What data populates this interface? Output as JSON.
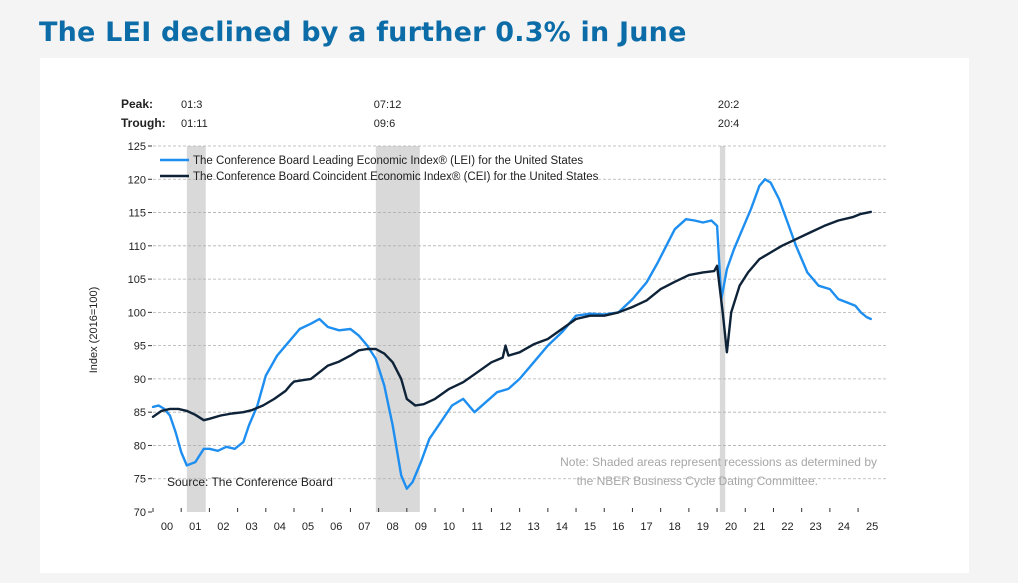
{
  "page": {
    "title": "The LEI declined by a further 0.3% in June"
  },
  "chart_data": {
    "type": "line",
    "ylabel": "Index (2016=100)",
    "ylim": [
      70,
      125
    ],
    "yticks": [
      70,
      75,
      80,
      85,
      90,
      95,
      100,
      105,
      110,
      115,
      120,
      125
    ],
    "xlim": [
      2000.0,
      2025.6
    ],
    "xticks": [
      "00",
      "01",
      "02",
      "03",
      "04",
      "05",
      "06",
      "07",
      "08",
      "09",
      "10",
      "11",
      "12",
      "13",
      "14",
      "15",
      "16",
      "17",
      "18",
      "19",
      "20",
      "21",
      "22",
      "23",
      "24",
      "25"
    ],
    "peak_label": "Peak:",
    "trough_label": "Trough:",
    "recessions": [
      {
        "start": 2001.2,
        "end": 2001.87,
        "peak_text": "01:3",
        "trough_text": "01:11"
      },
      {
        "start": 2007.9,
        "end": 2009.46,
        "peak_text": "07:12",
        "trough_text": "09:6"
      },
      {
        "start": 2020.1,
        "end": 2020.29,
        "peak_text": "20:2",
        "trough_text": "20:4"
      }
    ],
    "source": "Source: The Conference Board",
    "note_line1": "Note: Shaded areas represent recessions as determined by",
    "note_line2": "the NBER Business Cycle Dating Committee.",
    "series": [
      {
        "name": "The Conference Board Leading Economic Index® (LEI) for the United States",
        "color": "#1e8ff0",
        "x": [
          2000.0,
          2000.2,
          2000.4,
          2000.6,
          2000.8,
          2001.0,
          2001.2,
          2001.5,
          2001.8,
          2002.0,
          2002.3,
          2002.6,
          2002.9,
          2003.2,
          2003.4,
          2003.7,
          2004.0,
          2004.4,
          2004.8,
          2005.2,
          2005.6,
          2005.9,
          2006.2,
          2006.6,
          2007.0,
          2007.3,
          2007.6,
          2007.9,
          2008.2,
          2008.5,
          2008.8,
          2009.0,
          2009.2,
          2009.5,
          2009.8,
          2010.2,
          2010.6,
          2011.0,
          2011.4,
          2011.8,
          2012.2,
          2012.6,
          2013.0,
          2013.5,
          2014.0,
          2014.5,
          2015.0,
          2015.5,
          2016.0,
          2016.5,
          2017.0,
          2017.5,
          2017.9,
          2018.2,
          2018.5,
          2018.9,
          2019.2,
          2019.5,
          2019.8,
          2020.0,
          2020.15,
          2020.35,
          2020.6,
          2020.9,
          2021.2,
          2021.5,
          2021.7,
          2021.9,
          2022.2,
          2022.5,
          2022.8,
          2023.2,
          2023.6,
          2024.0,
          2024.3,
          2024.6,
          2024.9,
          2025.1,
          2025.3,
          2025.45
        ],
        "values": [
          85.8,
          86.0,
          85.5,
          84.5,
          82.0,
          79.0,
          77.0,
          77.5,
          79.5,
          79.5,
          79.2,
          79.8,
          79.5,
          80.5,
          83.0,
          86.0,
          90.5,
          93.5,
          95.5,
          97.5,
          98.3,
          99.0,
          97.8,
          97.3,
          97.5,
          96.5,
          95.0,
          93.0,
          89.0,
          83.0,
          75.5,
          73.5,
          74.5,
          77.5,
          81.0,
          83.5,
          86.0,
          87.0,
          85.0,
          86.5,
          88.0,
          88.5,
          90.0,
          92.5,
          95.0,
          97.0,
          99.5,
          99.8,
          99.7,
          100.0,
          102.0,
          104.5,
          107.5,
          110.0,
          112.5,
          114.0,
          113.8,
          113.5,
          113.8,
          113.0,
          102.0,
          106.5,
          109.5,
          112.5,
          115.5,
          119.0,
          120.0,
          119.5,
          117.0,
          113.5,
          110.0,
          106.0,
          104.0,
          103.5,
          102.0,
          101.5,
          101.0,
          100.0,
          99.3,
          99.0
        ]
      },
      {
        "name": "The Conference Board Coincident Economic Index® (CEI) for the United States",
        "color": "#0e2238",
        "x": [
          2000.0,
          2000.3,
          2000.6,
          2000.9,
          2001.2,
          2001.5,
          2001.8,
          2002.0,
          2002.4,
          2002.8,
          2003.2,
          2003.5,
          2003.9,
          2004.3,
          2004.7,
          2004.9,
          2005.0,
          2005.3,
          2005.6,
          2005.9,
          2006.2,
          2006.6,
          2007.0,
          2007.3,
          2007.6,
          2007.9,
          2008.2,
          2008.5,
          2008.8,
          2009.0,
          2009.3,
          2009.6,
          2010.0,
          2010.5,
          2011.0,
          2011.5,
          2012.0,
          2012.4,
          2012.5,
          2012.6,
          2013.0,
          2013.5,
          2014.0,
          2014.5,
          2015.0,
          2015.5,
          2016.0,
          2016.5,
          2017.0,
          2017.5,
          2018.0,
          2018.5,
          2019.0,
          2019.5,
          2019.9,
          2020.0,
          2020.2,
          2020.35,
          2020.5,
          2020.8,
          2021.1,
          2021.5,
          2021.9,
          2022.3,
          2022.8,
          2023.3,
          2023.8,
          2024.3,
          2024.8,
          2025.1,
          2025.45
        ],
        "values": [
          84.3,
          85.2,
          85.5,
          85.5,
          85.2,
          84.6,
          83.8,
          84.0,
          84.5,
          84.8,
          85.0,
          85.3,
          86.0,
          87.0,
          88.2,
          89.2,
          89.6,
          89.8,
          90.0,
          91.0,
          92.0,
          92.6,
          93.5,
          94.3,
          94.5,
          94.5,
          93.8,
          92.5,
          90.0,
          87.0,
          86.0,
          86.2,
          87.0,
          88.5,
          89.5,
          91.0,
          92.5,
          93.2,
          95.0,
          93.5,
          94.0,
          95.2,
          96.0,
          97.5,
          99.0,
          99.5,
          99.5,
          100.0,
          100.8,
          101.8,
          103.5,
          104.6,
          105.6,
          106.0,
          106.2,
          107.0,
          100.0,
          94.0,
          100.0,
          104.0,
          106.0,
          108.0,
          109.0,
          110.0,
          111.0,
          112.0,
          113.0,
          113.8,
          114.3,
          114.8,
          115.1
        ]
      }
    ]
  }
}
